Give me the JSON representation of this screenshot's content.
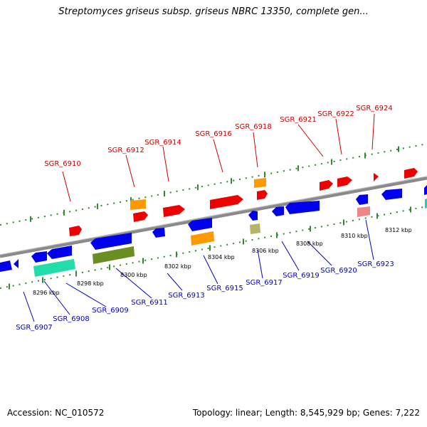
{
  "header": {
    "title": "Streptomyces griseus subsp. griseus NBRC 13350, complete gen..."
  },
  "footer": {
    "accession": "Accession: NC_010572",
    "summary": "Topology: linear; Length: 8,545,929 bp; Genes: 7,222"
  },
  "colors": {
    "backbone": "#8a8a8a",
    "top_label": "#cc0000",
    "bottom_label": "#0000cc",
    "tick_dots": "#2e8b2e",
    "red_gene": "#ee0000",
    "blue_gene": "#0000ee",
    "orange_gene": "#ff9900",
    "olive_gene": "#6b8e23",
    "khaki_gene": "#b5b56a",
    "teal_gene": "#22ddaa",
    "pink_gene": "#ee8888",
    "cyan_gene": "#22cccc"
  },
  "scale": {
    "ticks": [
      {
        "label": "8296 kbp"
      },
      {
        "label": "8298 kbp"
      },
      {
        "label": "8300 kbp"
      },
      {
        "label": "8302 kbp"
      },
      {
        "label": "8304 kbp"
      },
      {
        "label": "8306 kbp"
      },
      {
        "label": "8308 kbp"
      },
      {
        "label": "8310 kbp"
      },
      {
        "label": "8312 kbp"
      }
    ]
  },
  "genes": {
    "top": [
      {
        "label": "SGR_6910"
      },
      {
        "label": "SGR_6912"
      },
      {
        "label": "SGR_6914"
      },
      {
        "label": "SGR_6916"
      },
      {
        "label": "SGR_6918"
      },
      {
        "label": "SGR_6921"
      },
      {
        "label": "SGR_6922"
      },
      {
        "label": "SGR_6924"
      }
    ],
    "bottom": [
      {
        "label": "SGR_6907"
      },
      {
        "label": "SGR_6908"
      },
      {
        "label": "SGR_6909"
      },
      {
        "label": "SGR_6911"
      },
      {
        "label": "SGR_6913"
      },
      {
        "label": "SGR_6915"
      },
      {
        "label": "SGR_6917"
      },
      {
        "label": "SGR_6919"
      },
      {
        "label": "SGR_6920"
      },
      {
        "label": "SGR_6923"
      }
    ]
  }
}
